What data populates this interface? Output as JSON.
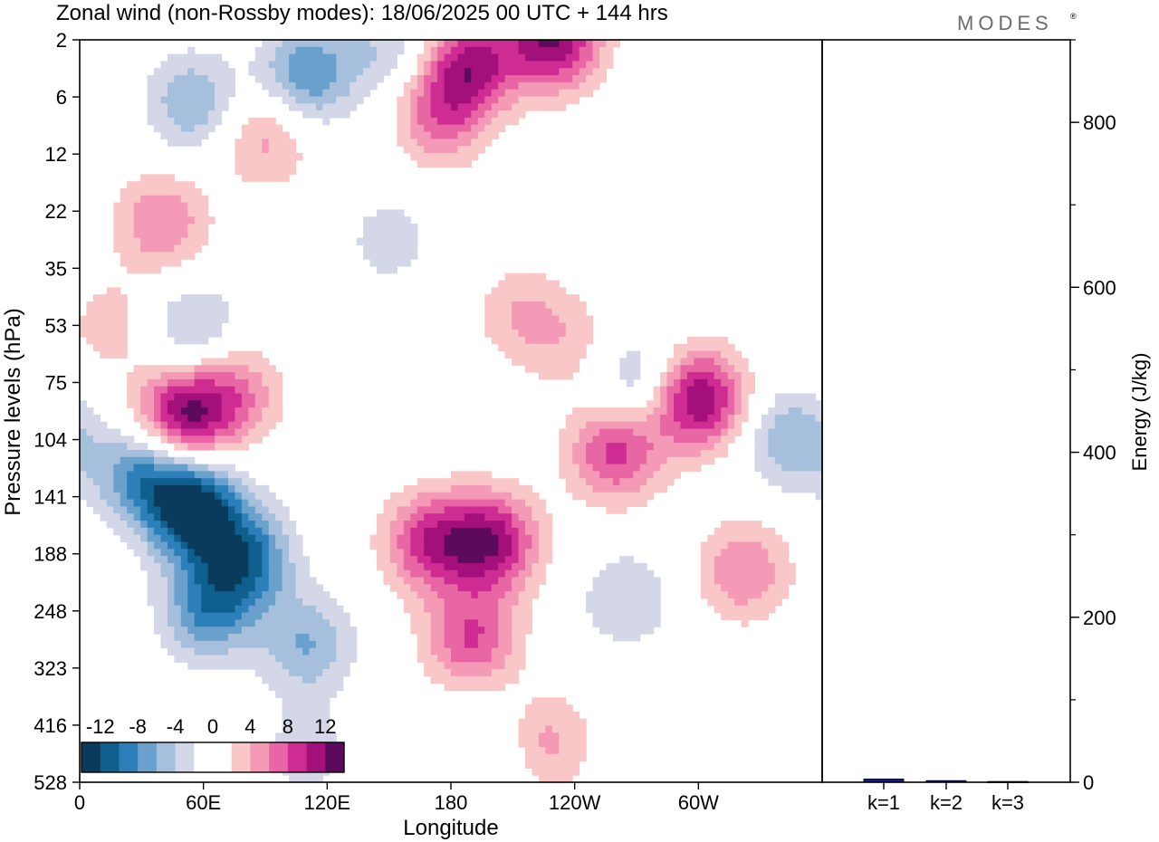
{
  "title": "Zonal wind (non-Rossby modes):  18/06/2025  00 UTC  + 144 hrs",
  "logo": "MODES",
  "logo_mark": "®",
  "colors": {
    "frame": "#000000",
    "bar_fill": "#1a1a8c",
    "palette": [
      "#0a3a5c",
      "#0f5f8f",
      "#2c7fb8",
      "#6aa1cc",
      "#a6bfdd",
      "#d4d7e8",
      "#ffffff",
      "#ffffff",
      "#f9c7c7",
      "#f59ab6",
      "#e866a3",
      "#cf2c93",
      "#a3107b",
      "#5c0a5c"
    ]
  },
  "chart_data": [
    {
      "type": "heatmap",
      "title": "Zonal wind (non-Rossby modes):  18/06/2025  00 UTC  + 144 hrs",
      "xlabel": "Longitude",
      "ylabel": "Pressure levels (hPa)",
      "x_ticks": [
        "0",
        "60E",
        "120E",
        "180",
        "120W",
        "60W"
      ],
      "x_tick_degrees": [
        0,
        60,
        120,
        180,
        240,
        300
      ],
      "xlim": [
        0,
        360
      ],
      "y_ticks": [
        "2",
        "6",
        "12",
        "22",
        "35",
        "53",
        "75",
        "104",
        "141",
        "188",
        "248",
        "323",
        "416",
        "528"
      ],
      "y_axis": "pressure levels, top to bottom",
      "colorbar": {
        "tick_labels": [
          "-12",
          "-8",
          "-4",
          "0",
          "4",
          "8",
          "12"
        ],
        "tick_values": [
          -12,
          -8,
          -4,
          0,
          4,
          8,
          12
        ],
        "levels": [
          -14,
          -12,
          -10,
          -8,
          -6,
          -4,
          -2,
          0,
          2,
          4,
          6,
          8,
          10,
          12,
          14
        ]
      },
      "features": [
        {
          "lon": 30,
          "level": 7.6,
          "value": -8
        },
        {
          "lon": 55,
          "level": 8.2,
          "value": -14
        },
        {
          "lon": 80,
          "level": 9.1,
          "value": -10
        },
        {
          "lon": 62,
          "level": 10.0,
          "value": -8
        },
        {
          "lon": 110,
          "level": 10.6,
          "value": -6
        },
        {
          "lon": 55,
          "level": 1.1,
          "value": -6
        },
        {
          "lon": 110,
          "level": 0.6,
          "value": -8
        },
        {
          "lon": 150,
          "level": 0.2,
          "value": -4
        },
        {
          "lon": 55,
          "level": 5.1,
          "value": -5
        },
        {
          "lon": 190,
          "level": 0.4,
          "value": 10
        },
        {
          "lon": 230,
          "level": 0.0,
          "value": 12
        },
        {
          "lon": 175,
          "level": 1.3,
          "value": 7
        },
        {
          "lon": 90,
          "level": 1.7,
          "value": 5
        },
        {
          "lon": 40,
          "level": 3.2,
          "value": 6
        },
        {
          "lon": 50,
          "level": 6.6,
          "value": 12
        },
        {
          "lon": 75,
          "level": 6.2,
          "value": 6
        },
        {
          "lon": 170,
          "level": 8.8,
          "value": 9
        },
        {
          "lon": 200,
          "level": 8.8,
          "value": 11
        },
        {
          "lon": 190,
          "level": 10.5,
          "value": 8
        },
        {
          "lon": 260,
          "level": 7.2,
          "value": 9
        },
        {
          "lon": 300,
          "level": 6.3,
          "value": 12
        },
        {
          "lon": 322,
          "level": 9.3,
          "value": 6
        },
        {
          "lon": 225,
          "level": 12.3,
          "value": 5
        },
        {
          "lon": 215,
          "level": 4.8,
          "value": 4
        },
        {
          "lon": 240,
          "level": 5.4,
          "value": 3
        },
        {
          "lon": 15,
          "level": 5.0,
          "value": 3
        },
        {
          "lon": 150,
          "level": 3.5,
          "value": -3
        },
        {
          "lon": 268,
          "level": 6.0,
          "value": -5
        },
        {
          "lon": 345,
          "level": 7.0,
          "value": -6
        },
        {
          "lon": 265,
          "level": 9.8,
          "value": -4
        },
        {
          "lon": 200,
          "level": 12.4,
          "value": -3
        },
        {
          "lon": 110,
          "level": 12.5,
          "value": -3
        }
      ]
    },
    {
      "type": "bar",
      "ylabel": "Energy (J/kg)",
      "categories": [
        "k=1",
        "k=2",
        "k=3"
      ],
      "values": [
        4,
        2,
        1
      ],
      "ylim": [
        0,
        900
      ],
      "y_ticks": [
        "0",
        "200",
        "400",
        "600",
        "800"
      ],
      "y_tick_values": [
        0,
        200,
        400,
        600,
        800
      ],
      "y_minor_step": 100
    }
  ]
}
